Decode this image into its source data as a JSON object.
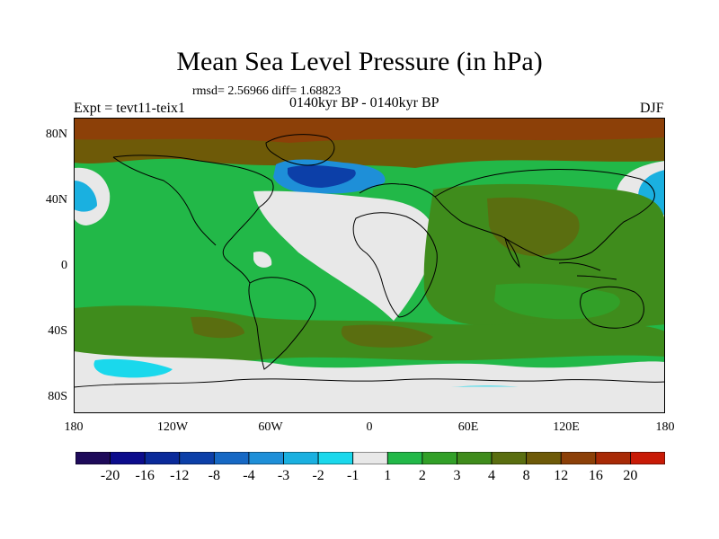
{
  "map": {
    "title": "Mean Sea Level Pressure (in hPa)",
    "stats": "rmsd= 2.56966 diff= 1.68823",
    "experiment": "Expt = tevt11-teix1",
    "period": "0140kyr BP - 0140kyr BP",
    "season": "DJF",
    "projection": "cylindrical equidistant",
    "lat_range": [
      -90,
      90
    ],
    "lon_range": [
      -180,
      180
    ],
    "lat_ticks": [
      "80N",
      "40N",
      "0",
      "40S",
      "80S"
    ],
    "lon_ticks": [
      "180",
      "120W",
      "60W",
      "0",
      "60E",
      "120E",
      "180"
    ],
    "field": "Mean sea level pressure difference (hPa)",
    "regions": [
      {
        "name": "Arctic / high northern latitudes",
        "class": "8 to 12"
      },
      {
        "name": "North Atlantic (south of Greenland)",
        "class": "-12 to -4"
      },
      {
        "name": "North Pacific",
        "class": "-4 to -1"
      },
      {
        "name": "Tropical Atlantic",
        "class": "-1 to 1"
      },
      {
        "name": "Southern Ocean ring (~40-60S)",
        "class": "3 to 8"
      },
      {
        "name": "Antarctic margin",
        "class": "-1 to 1"
      },
      {
        "name": "Asia / Indian Ocean",
        "class": "3 to 8"
      }
    ]
  },
  "colorbar": {
    "labels": [
      "-20",
      "-16",
      "-12",
      "-8",
      "-4",
      "-3",
      "-2",
      "-1",
      "1",
      "2",
      "3",
      "4",
      "8",
      "12",
      "16",
      "20"
    ],
    "colors": [
      "#1e0a5a",
      "#0c0c8c",
      "#0a2a9a",
      "#0c3fa8",
      "#1668c4",
      "#1e8fd8",
      "#1ab0e0",
      "#1ad8ec",
      "#e8e8e8",
      "#22b848",
      "#32a028",
      "#3f8c1c",
      "#5a6e10",
      "#6e5a08",
      "#8c4008",
      "#a82a06",
      "#c81a06"
    ]
  },
  "palette": {
    "land_outline": "#000000",
    "frame": "#000000"
  }
}
